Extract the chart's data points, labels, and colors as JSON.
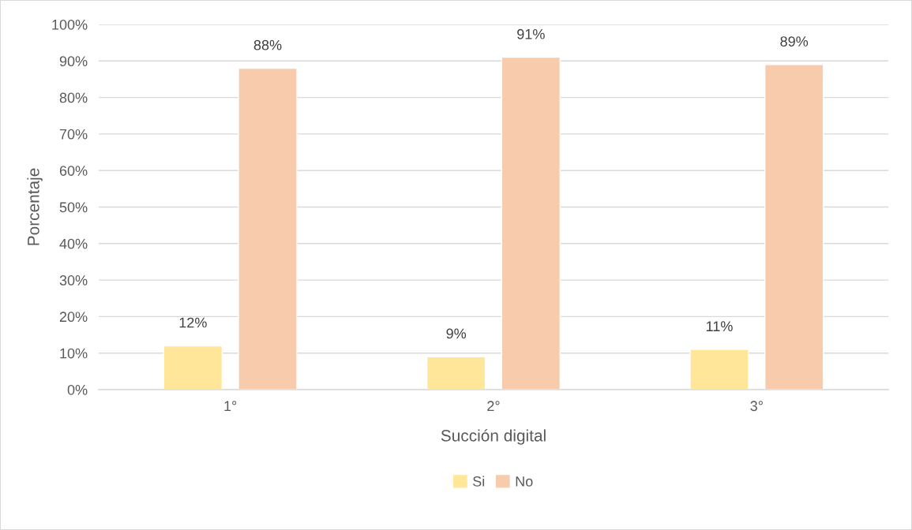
{
  "chart_data": {
    "type": "bar",
    "xlabel": "Succión digital",
    "ylabel": "Porcentaje",
    "categories": [
      "1°",
      "2°",
      "3°"
    ],
    "series": [
      {
        "name": "Si",
        "color": "#ffe699",
        "values": [
          12,
          9,
          11
        ],
        "value_labels": [
          "12%",
          "9%",
          "11%"
        ]
      },
      {
        "name": "No",
        "color": "#f8cbad",
        "values": [
          88,
          91,
          89
        ],
        "value_labels": [
          "88%",
          "91%",
          "89%"
        ]
      }
    ],
    "ylim": [
      0,
      100
    ],
    "yticks": [
      {
        "value": 0,
        "label": "0%"
      },
      {
        "value": 10,
        "label": "10%"
      },
      {
        "value": 20,
        "label": "20%"
      },
      {
        "value": 30,
        "label": "30%"
      },
      {
        "value": 40,
        "label": "40%"
      },
      {
        "value": 50,
        "label": "50%"
      },
      {
        "value": 60,
        "label": "60%"
      },
      {
        "value": 70,
        "label": "70%"
      },
      {
        "value": 80,
        "label": "80%"
      },
      {
        "value": 90,
        "label": "90%"
      },
      {
        "value": 100,
        "label": "100%"
      }
    ],
    "grid": "y",
    "legend": "bottom"
  }
}
